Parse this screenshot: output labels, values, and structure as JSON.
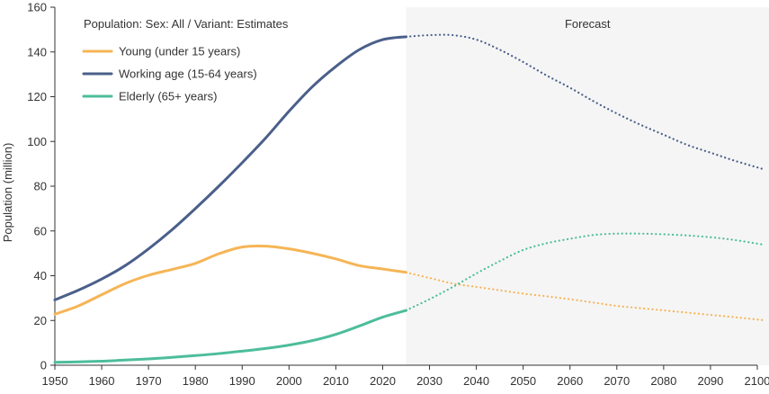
{
  "chart_data": {
    "type": "line",
    "ylabel": "Population (million)",
    "xlim": [
      1950,
      2100
    ],
    "ylim": [
      0,
      160
    ],
    "x_ticks": [
      1950,
      1960,
      1970,
      1980,
      1990,
      2000,
      2010,
      2020,
      2030,
      2040,
      2050,
      2060,
      2070,
      2080,
      2090,
      2100
    ],
    "y_ticks": [
      0,
      20,
      40,
      60,
      80,
      100,
      120,
      140,
      160
    ],
    "legend_title": "Population: Sex: All / Variant: Estimates",
    "legend_position": "top-left",
    "forecast_label": "Forecast",
    "forecast_start": 2025,
    "forecast_end": 2101,
    "grid": false,
    "series": [
      {
        "name": "Young (under 15 years)",
        "color": "#f5b556",
        "x": [
          1950,
          1955,
          1960,
          1965,
          1970,
          1975,
          1980,
          1985,
          1990,
          1995,
          2000,
          2005,
          2010,
          2015,
          2020,
          2025,
          2030,
          2035,
          2040,
          2045,
          2050,
          2055,
          2060,
          2065,
          2070,
          2075,
          2080,
          2085,
          2090,
          2095,
          2101
        ],
        "values": [
          22.8,
          26.5,
          31.5,
          36.5,
          40.2,
          42.8,
          45.5,
          49.8,
          52.8,
          53.2,
          52.0,
          50.0,
          47.5,
          44.5,
          43.0,
          41.5,
          39.0,
          36.5,
          35.0,
          33.5,
          32.0,
          30.8,
          29.5,
          28.0,
          26.5,
          25.5,
          24.5,
          23.5,
          22.5,
          21.5,
          20.2
        ]
      },
      {
        "name": "Working age (15-64 years)",
        "color": "#4a5f8a",
        "x": [
          1950,
          1955,
          1960,
          1965,
          1970,
          1975,
          1980,
          1985,
          1990,
          1995,
          2000,
          2005,
          2010,
          2015,
          2020,
          2025,
          2030,
          2035,
          2040,
          2045,
          2050,
          2055,
          2060,
          2065,
          2070,
          2075,
          2080,
          2085,
          2090,
          2095,
          2101
        ],
        "values": [
          29.2,
          33.5,
          38.5,
          44.5,
          52.0,
          60.5,
          70.0,
          80.0,
          90.5,
          101.5,
          113.5,
          124.5,
          133.5,
          141.0,
          145.5,
          146.8,
          147.5,
          147.5,
          145.5,
          141.0,
          135.5,
          129.5,
          124.0,
          118.0,
          112.5,
          107.5,
          103.0,
          98.5,
          95.0,
          91.5,
          87.8
        ]
      },
      {
        "name": "Elderly (65+ years)",
        "color": "#4dbd9b",
        "x": [
          1950,
          1955,
          1960,
          1965,
          1970,
          1975,
          1980,
          1985,
          1990,
          1995,
          2000,
          2005,
          2010,
          2015,
          2020,
          2025,
          2030,
          2035,
          2040,
          2045,
          2050,
          2055,
          2060,
          2065,
          2070,
          2075,
          2080,
          2085,
          2090,
          2095,
          2101
        ],
        "values": [
          1.3,
          1.5,
          1.8,
          2.3,
          2.8,
          3.5,
          4.3,
          5.2,
          6.3,
          7.5,
          9.0,
          11.0,
          13.8,
          17.5,
          21.5,
          24.5,
          29.5,
          35.0,
          41.0,
          46.5,
          51.5,
          54.5,
          56.5,
          58.2,
          58.8,
          58.8,
          58.5,
          58.0,
          57.2,
          56.0,
          54.0
        ]
      }
    ]
  }
}
